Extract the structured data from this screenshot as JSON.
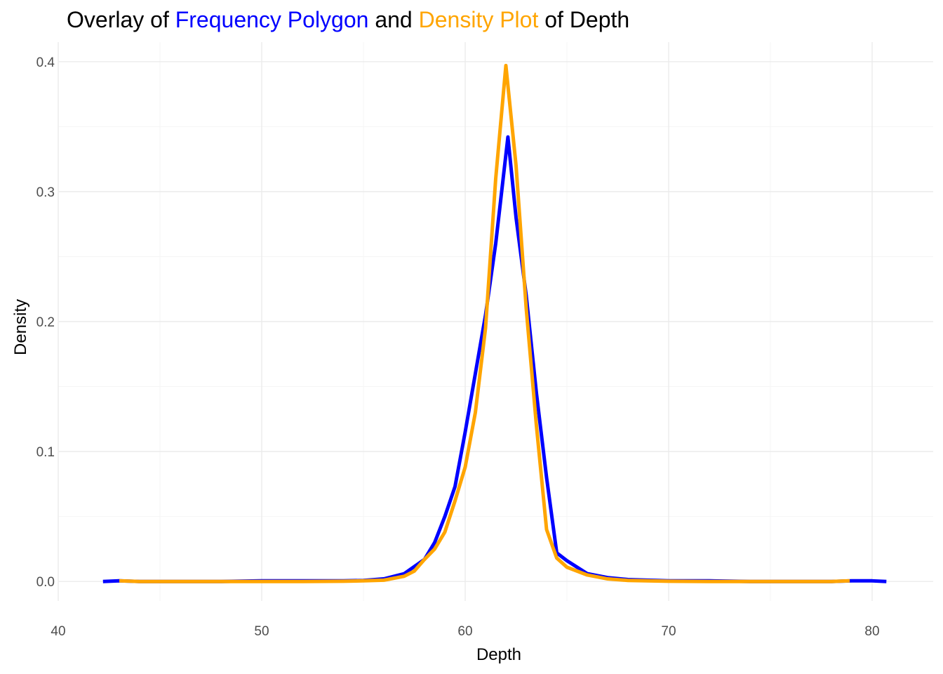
{
  "colors": {
    "frequency_polygon": "#0000ff",
    "density_plot": "#ffa500",
    "grid_major": "#ebebeb",
    "grid_minor": "#f5f5f5",
    "title_text": "#000000",
    "tick_text": "#4d4d4d"
  },
  "chart_data": {
    "type": "line",
    "title_parts": [
      {
        "text": "Overlay of ",
        "color": "#000000"
      },
      {
        "text": "Frequency Polygon",
        "color": "#0000ff"
      },
      {
        "text": " and ",
        "color": "#000000"
      },
      {
        "text": "Density Plot",
        "color": "#ffa500"
      },
      {
        "text": " of Depth",
        "color": "#000000"
      }
    ],
    "xlabel": "Depth",
    "ylabel": "Density",
    "xlim": [
      40,
      83
    ],
    "ylim": [
      -0.015,
      0.415
    ],
    "x_ticks": [
      40,
      50,
      60,
      70,
      80
    ],
    "x_tick_labels": [
      "40",
      "50",
      "60",
      "70",
      "80"
    ],
    "y_ticks": [
      0.0,
      0.1,
      0.2,
      0.3,
      0.4
    ],
    "y_tick_labels": [
      "0.0",
      "0.1",
      "0.2",
      "0.3",
      "0.4"
    ],
    "grid": true,
    "legend": "none",
    "series": [
      {
        "color": "#0000ff",
        "x": [
          42.2,
          43.0,
          44.0,
          46.0,
          48.0,
          50.0,
          52.0,
          54.0,
          55.0,
          56.0,
          57.0,
          58.0,
          58.5,
          59.0,
          59.5,
          60.0,
          60.5,
          61.0,
          61.5,
          62.1,
          62.5,
          63.0,
          63.5,
          64.0,
          64.5,
          65.0,
          66.0,
          67.0,
          68.0,
          70.0,
          72.0,
          74.0,
          76.0,
          78.0,
          79.0,
          80.0,
          80.7
        ],
        "y": [
          0.0,
          0.0005,
          0.0,
          0.0,
          0.0,
          0.0005,
          0.0005,
          0.0005,
          0.0008,
          0.002,
          0.006,
          0.017,
          0.03,
          0.05,
          0.073,
          0.115,
          0.16,
          0.205,
          0.26,
          0.342,
          0.28,
          0.22,
          0.145,
          0.08,
          0.022,
          0.016,
          0.006,
          0.003,
          0.0015,
          0.0005,
          0.0005,
          0.0,
          0.0,
          0.0,
          0.0005,
          0.0005,
          0.0
        ]
      },
      {
        "color": "#ffa500",
        "x": [
          43.0,
          44.0,
          46.0,
          48.0,
          50.0,
          52.0,
          54.0,
          55.0,
          56.0,
          57.0,
          57.5,
          58.0,
          58.5,
          59.0,
          59.5,
          60.0,
          60.5,
          61.0,
          61.5,
          62.0,
          62.5,
          63.0,
          63.5,
          64.0,
          64.5,
          65.0,
          66.0,
          67.0,
          68.0,
          70.0,
          72.0,
          74.0,
          76.0,
          78.0,
          78.9
        ],
        "y": [
          0.0005,
          0.0,
          0.0,
          0.0,
          0.0,
          0.0,
          0.0002,
          0.0005,
          0.001,
          0.004,
          0.008,
          0.017,
          0.025,
          0.038,
          0.062,
          0.088,
          0.13,
          0.195,
          0.31,
          0.397,
          0.32,
          0.21,
          0.12,
          0.04,
          0.018,
          0.011,
          0.005,
          0.002,
          0.0008,
          0.0002,
          0.0,
          0.0,
          0.0,
          0.0,
          0.0005
        ]
      }
    ]
  }
}
